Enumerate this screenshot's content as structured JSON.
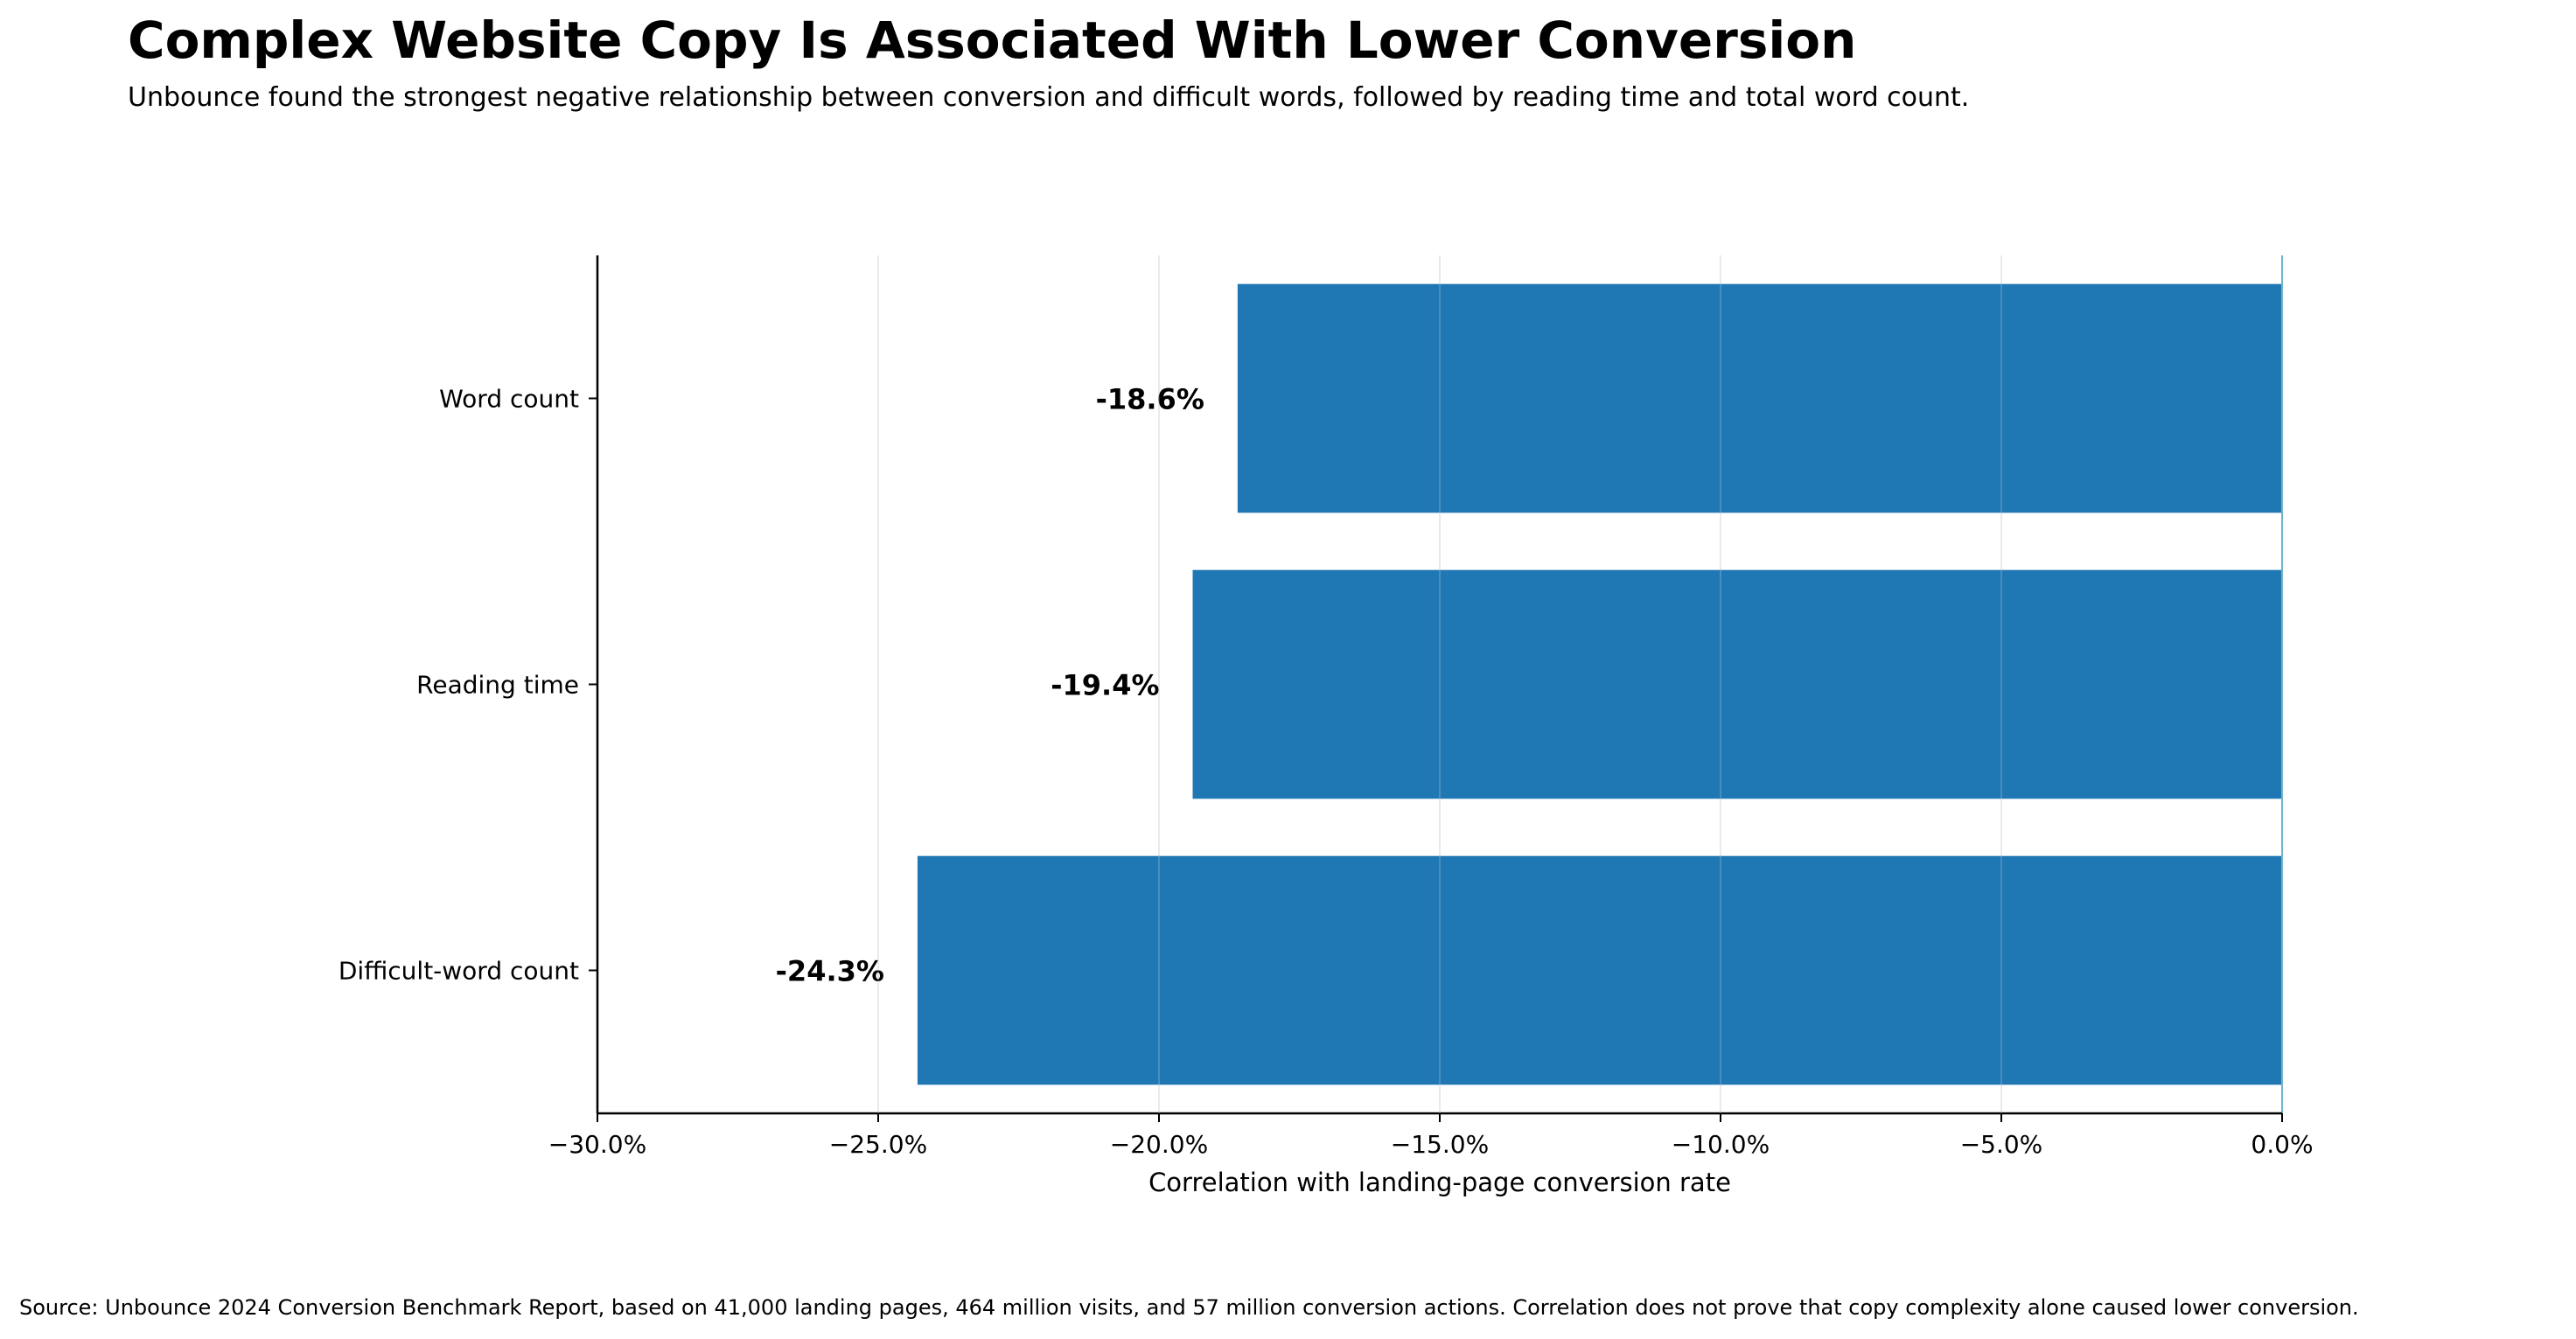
{
  "chart_data": {
    "type": "bar",
    "orientation": "horizontal",
    "title": "Complex Website Copy Is Associated With Lower Conversion",
    "subtitle": "Unbounce found the strongest negative relationship between conversion and difficult words, followed by reading time and total word count.",
    "categories": [
      "Word count",
      "Reading time",
      "Difficult-word count"
    ],
    "values": [
      -18.6,
      -19.4,
      -24.3
    ],
    "value_labels": [
      "-18.6%",
      "-19.4%",
      "-24.3%"
    ],
    "xlabel": "Correlation with landing-page conversion rate",
    "ylabel": "",
    "xlim": [
      -30,
      0
    ],
    "x_ticks": [
      -30,
      -25,
      -20,
      -15,
      -10,
      -5,
      0
    ],
    "x_tick_labels": [
      "−30.0%",
      "−25.0%",
      "−20.0%",
      "−15.0%",
      "−10.0%",
      "−5.0%",
      "0.0%"
    ],
    "grid": "vertical",
    "bar_color": "#1f77b4",
    "zero_line_color": "#6fb6c9",
    "source": "Source: Unbounce 2024 Conversion Benchmark Report, based on 41,000 landing pages, 464 million visits, and 57 million conversion actions. Correlation does not prove that copy complexity alone caused lower conversion."
  }
}
